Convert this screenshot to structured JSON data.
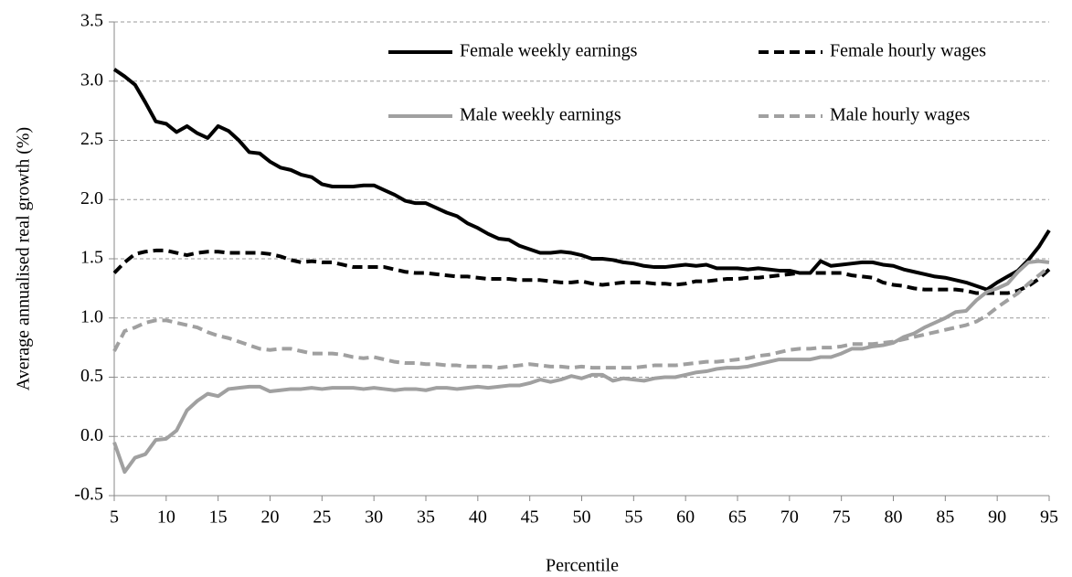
{
  "chart_data": {
    "type": "line",
    "ylabel": "Average annualised real growth (%)",
    "xlabel": "Percentile",
    "x": [
      5,
      6,
      7,
      8,
      9,
      10,
      11,
      12,
      13,
      14,
      15,
      16,
      17,
      18,
      19,
      20,
      21,
      22,
      23,
      24,
      25,
      26,
      27,
      28,
      29,
      30,
      31,
      32,
      33,
      34,
      35,
      36,
      37,
      38,
      39,
      40,
      41,
      42,
      43,
      44,
      45,
      46,
      47,
      48,
      49,
      50,
      51,
      52,
      53,
      54,
      55,
      56,
      57,
      58,
      59,
      60,
      61,
      62,
      63,
      64,
      65,
      66,
      67,
      68,
      69,
      70,
      71,
      72,
      73,
      74,
      75,
      76,
      77,
      78,
      79,
      80,
      81,
      82,
      83,
      84,
      85,
      86,
      87,
      88,
      89,
      90,
      91,
      92,
      93,
      94,
      95
    ],
    "xlim": [
      5,
      95
    ],
    "xticks": [
      5,
      10,
      15,
      20,
      25,
      30,
      35,
      40,
      45,
      50,
      55,
      60,
      65,
      70,
      75,
      80,
      85,
      90,
      95
    ],
    "ylim": [
      -0.5,
      3.5
    ],
    "yticks": [
      -0.5,
      {
        "value": 0,
        "label": "0.0"
      },
      0.5,
      {
        "value": 1,
        "label": "1.0"
      },
      1.5,
      {
        "value": 2,
        "label": "2.0"
      },
      2.5,
      {
        "value": 3,
        "label": "3.0"
      },
      3.5
    ],
    "grid": true,
    "series": [
      {
        "name": "Female weekly earnings",
        "color": "#000000",
        "linestyle": "solid",
        "values": [
          3.1,
          3.04,
          2.97,
          2.82,
          2.66,
          2.64,
          2.57,
          2.62,
          2.56,
          2.52,
          2.62,
          2.58,
          2.5,
          2.4,
          2.39,
          2.32,
          2.27,
          2.25,
          2.21,
          2.19,
          2.13,
          2.11,
          2.11,
          2.11,
          2.12,
          2.12,
          2.08,
          2.04,
          1.99,
          1.97,
          1.97,
          1.93,
          1.89,
          1.86,
          1.8,
          1.76,
          1.71,
          1.67,
          1.66,
          1.61,
          1.58,
          1.55,
          1.55,
          1.56,
          1.55,
          1.53,
          1.5,
          1.5,
          1.49,
          1.47,
          1.46,
          1.44,
          1.43,
          1.43,
          1.44,
          1.45,
          1.44,
          1.45,
          1.42,
          1.42,
          1.42,
          1.41,
          1.42,
          1.41,
          1.4,
          1.4,
          1.38,
          1.38,
          1.48,
          1.44,
          1.45,
          1.46,
          1.47,
          1.47,
          1.45,
          1.44,
          1.41,
          1.39,
          1.37,
          1.35,
          1.34,
          1.32,
          1.3,
          1.27,
          1.24,
          1.3,
          1.35,
          1.4,
          1.49,
          1.6,
          1.74
        ]
      },
      {
        "name": "Female hourly wages",
        "color": "#000000",
        "linestyle": "dashed",
        "values": [
          1.38,
          1.47,
          1.54,
          1.56,
          1.57,
          1.57,
          1.55,
          1.53,
          1.55,
          1.56,
          1.56,
          1.55,
          1.55,
          1.55,
          1.55,
          1.54,
          1.52,
          1.49,
          1.47,
          1.48,
          1.47,
          1.47,
          1.45,
          1.43,
          1.43,
          1.43,
          1.43,
          1.41,
          1.39,
          1.38,
          1.38,
          1.37,
          1.36,
          1.35,
          1.35,
          1.34,
          1.33,
          1.33,
          1.33,
          1.32,
          1.32,
          1.32,
          1.31,
          1.3,
          1.3,
          1.31,
          1.29,
          1.28,
          1.29,
          1.3,
          1.3,
          1.3,
          1.29,
          1.29,
          1.28,
          1.29,
          1.31,
          1.31,
          1.32,
          1.33,
          1.33,
          1.34,
          1.34,
          1.35,
          1.36,
          1.37,
          1.38,
          1.38,
          1.38,
          1.38,
          1.38,
          1.36,
          1.35,
          1.34,
          1.3,
          1.28,
          1.27,
          1.25,
          1.24,
          1.24,
          1.24,
          1.24,
          1.23,
          1.21,
          1.21,
          1.21,
          1.21,
          1.23,
          1.27,
          1.33,
          1.41
        ]
      },
      {
        "name": "Male weekly earnings",
        "color": "#a0a0a0",
        "linestyle": "solid",
        "values": [
          -0.05,
          -0.3,
          -0.18,
          -0.15,
          -0.03,
          -0.02,
          0.05,
          0.22,
          0.3,
          0.36,
          0.34,
          0.4,
          0.41,
          0.42,
          0.42,
          0.38,
          0.39,
          0.4,
          0.4,
          0.41,
          0.4,
          0.41,
          0.41,
          0.41,
          0.4,
          0.41,
          0.4,
          0.39,
          0.4,
          0.4,
          0.39,
          0.41,
          0.41,
          0.4,
          0.41,
          0.42,
          0.41,
          0.42,
          0.43,
          0.43,
          0.45,
          0.48,
          0.46,
          0.48,
          0.51,
          0.49,
          0.52,
          0.52,
          0.47,
          0.49,
          0.48,
          0.47,
          0.49,
          0.5,
          0.5,
          0.52,
          0.54,
          0.55,
          0.57,
          0.58,
          0.58,
          0.59,
          0.61,
          0.63,
          0.65,
          0.65,
          0.65,
          0.65,
          0.67,
          0.67,
          0.7,
          0.74,
          0.74,
          0.76,
          0.77,
          0.79,
          0.84,
          0.87,
          0.92,
          0.96,
          1.0,
          1.05,
          1.06,
          1.15,
          1.22,
          1.25,
          1.29,
          1.39,
          1.47,
          1.48,
          1.47
        ]
      },
      {
        "name": "Male hourly wages",
        "color": "#a0a0a0",
        "linestyle": "dashed",
        "values": [
          0.72,
          0.89,
          0.92,
          0.96,
          0.98,
          0.98,
          0.96,
          0.94,
          0.92,
          0.88,
          0.85,
          0.83,
          0.8,
          0.77,
          0.74,
          0.73,
          0.74,
          0.74,
          0.72,
          0.7,
          0.7,
          0.7,
          0.69,
          0.67,
          0.66,
          0.67,
          0.65,
          0.63,
          0.62,
          0.62,
          0.61,
          0.61,
          0.6,
          0.6,
          0.59,
          0.59,
          0.59,
          0.58,
          0.59,
          0.6,
          0.61,
          0.6,
          0.59,
          0.59,
          0.58,
          0.59,
          0.58,
          0.58,
          0.58,
          0.58,
          0.58,
          0.59,
          0.6,
          0.6,
          0.6,
          0.61,
          0.62,
          0.63,
          0.63,
          0.64,
          0.65,
          0.66,
          0.68,
          0.69,
          0.71,
          0.73,
          0.74,
          0.74,
          0.75,
          0.75,
          0.76,
          0.78,
          0.78,
          0.78,
          0.79,
          0.8,
          0.82,
          0.84,
          0.86,
          0.88,
          0.9,
          0.92,
          0.94,
          0.97,
          1.02,
          1.09,
          1.15,
          1.21,
          1.29,
          1.36,
          1.43
        ]
      }
    ]
  }
}
